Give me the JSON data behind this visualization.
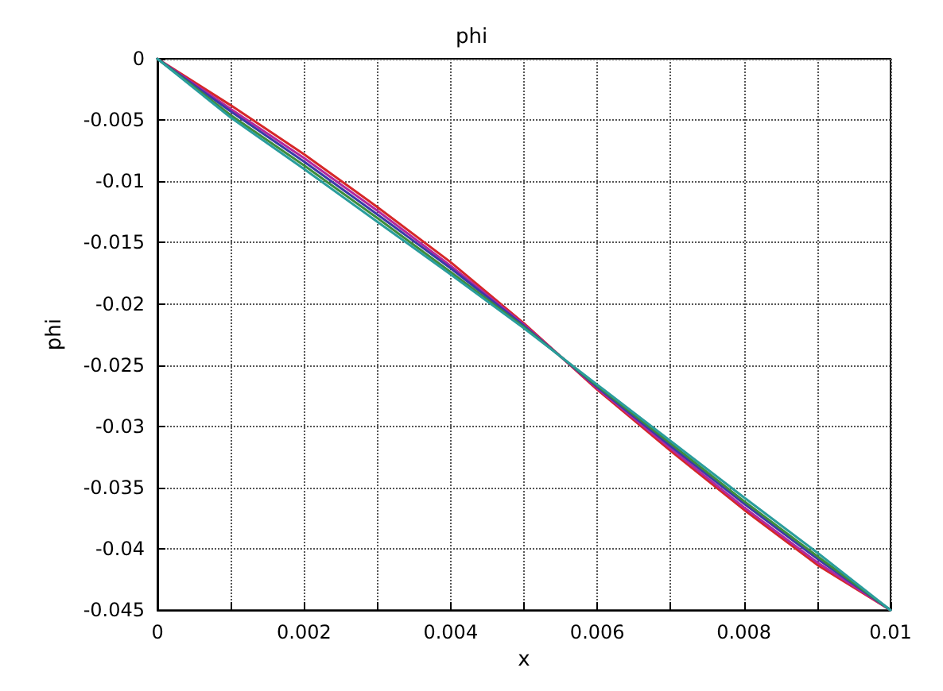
{
  "chart_data": {
    "type": "line",
    "title": "phi",
    "xlabel": "x",
    "ylabel": "phi",
    "x": [
      0,
      0.001,
      0.002,
      0.003,
      0.004,
      0.005,
      0.006,
      0.007,
      0.008,
      0.009,
      0.01
    ],
    "series": [
      {
        "color": "#d62728",
        "values": [
          0,
          -0.0038,
          -0.0078,
          -0.0121,
          -0.0166,
          -0.0216,
          -0.027,
          -0.032,
          -0.0368,
          -0.0413,
          -0.045
        ]
      },
      {
        "color": "#b0289e",
        "values": [
          0,
          -0.0041,
          -0.0081,
          -0.0124,
          -0.0169,
          -0.0217,
          -0.0269,
          -0.0318,
          -0.0366,
          -0.0411,
          -0.045
        ]
      },
      {
        "color": "#3a3aa8",
        "values": [
          0,
          -0.0043,
          -0.0084,
          -0.0127,
          -0.0171,
          -0.0218,
          -0.0268,
          -0.0316,
          -0.0363,
          -0.0408,
          -0.045
        ]
      },
      {
        "color": "#3c8c3c",
        "values": [
          0,
          -0.0046,
          -0.0087,
          -0.013,
          -0.0174,
          -0.0219,
          -0.0267,
          -0.0314,
          -0.0361,
          -0.0406,
          -0.045
        ]
      },
      {
        "color": "#2a9d9d",
        "values": [
          0,
          -0.0048,
          -0.009,
          -0.0133,
          -0.0176,
          -0.022,
          -0.0266,
          -0.0312,
          -0.0358,
          -0.0403,
          -0.045
        ]
      }
    ],
    "xlim": [
      0,
      0.01
    ],
    "xticks": [
      0,
      {
        "value": 0.001,
        "label": null
      },
      0.002,
      {
        "value": 0.003,
        "label": null
      },
      0.004,
      {
        "value": 0.005,
        "label": null
      },
      0.006,
      {
        "value": 0.007,
        "label": null
      },
      0.008,
      {
        "value": 0.009,
        "label": null
      },
      0.01
    ],
    "ylim": [
      -0.045,
      0
    ],
    "yticks": [
      -0.045,
      -0.04,
      -0.035,
      -0.03,
      -0.025,
      -0.02,
      -0.015,
      -0.01,
      -0.005,
      0
    ],
    "grid": true,
    "marker": "none",
    "line_style": "solid"
  }
}
